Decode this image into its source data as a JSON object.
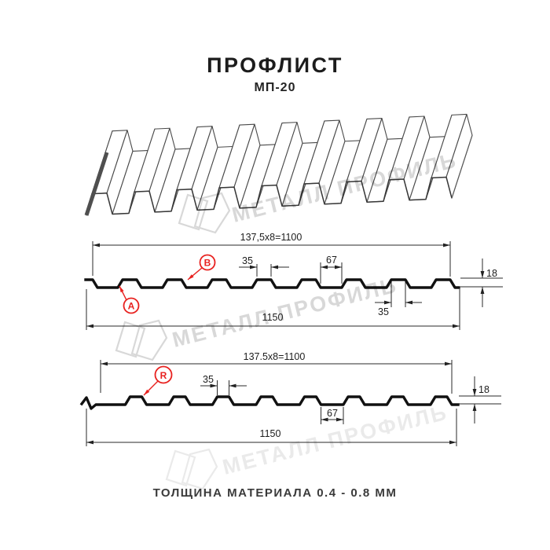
{
  "title": "ПРОФЛИСТ",
  "subtitle": "МП-20",
  "footer": "ТОЛЩИНА МАТЕРИАЛА 0.4 - 0.8 ММ",
  "watermark": {
    "text": "МЕТАЛЛ ПРОФИЛЬ"
  },
  "diagram1": {
    "label_a": "A",
    "label_b": "B",
    "dim_pitch": "137,5x8=1100",
    "dim_rib_top_width": "35",
    "dim_valley_width": "67",
    "dim_rib_top_width2": "35",
    "dim_height": "18",
    "dim_total_width": "1150"
  },
  "diagram2": {
    "label_r": "R",
    "dim_pitch": "137.5x8=1100",
    "dim_rib_top_width": "35",
    "dim_valley_width": "67",
    "dim_height": "18",
    "dim_total_width": "1150"
  },
  "colors": {
    "accent_red": "#e8211f",
    "drawing_line": "#111111",
    "watermark_gray": "#d8d8d8"
  }
}
